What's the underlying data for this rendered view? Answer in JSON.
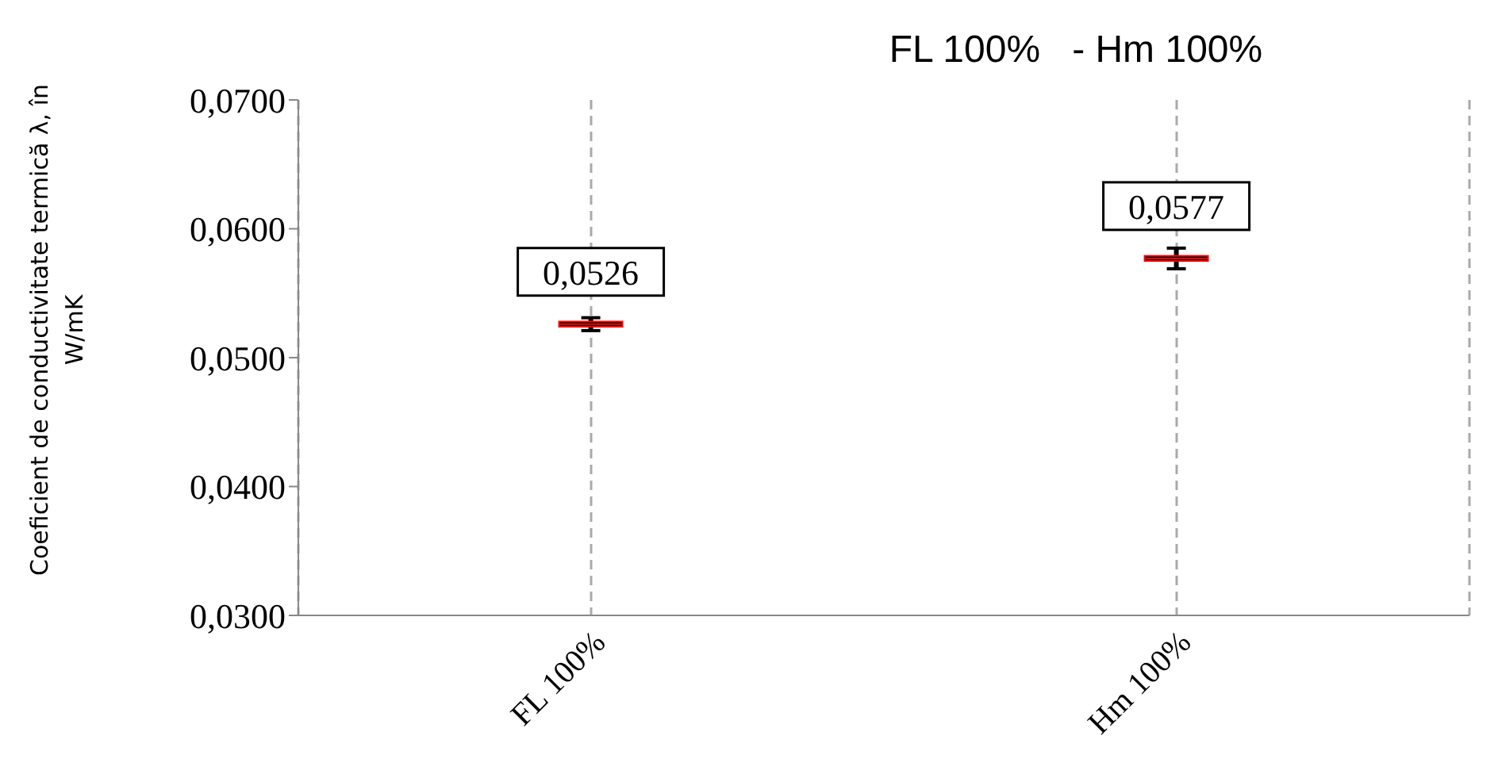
{
  "chart_data": {
    "type": "box",
    "title": "FL 100%   - Hm 100%",
    "ylabel": "Coeficient de conductivitate termică λ, în W/mK",
    "categories": [
      "FL 100%",
      "Hm 100%"
    ],
    "boxes": [
      {
        "low": 0.0521,
        "q1": 0.0524,
        "median": 0.0526,
        "q3": 0.0528,
        "high": 0.0531
      },
      {
        "low": 0.0569,
        "q1": 0.0575,
        "median": 0.0577,
        "q3": 0.0579,
        "high": 0.0585
      }
    ],
    "color": "#000000",
    "value_labels": [
      "0,0526",
      "0,0577"
    ],
    "ylim": [
      0.03,
      0.07
    ],
    "yticks": [
      {
        "value": 0.03,
        "label": "0,0300"
      },
      {
        "value": 0.04,
        "label": "0,0400"
      },
      {
        "value": 0.05,
        "label": "0,0500"
      },
      {
        "value": 0.06,
        "label": "0,0600"
      },
      {
        "value": 0.07,
        "label": "0,0700"
      }
    ],
    "grid": "x"
  }
}
